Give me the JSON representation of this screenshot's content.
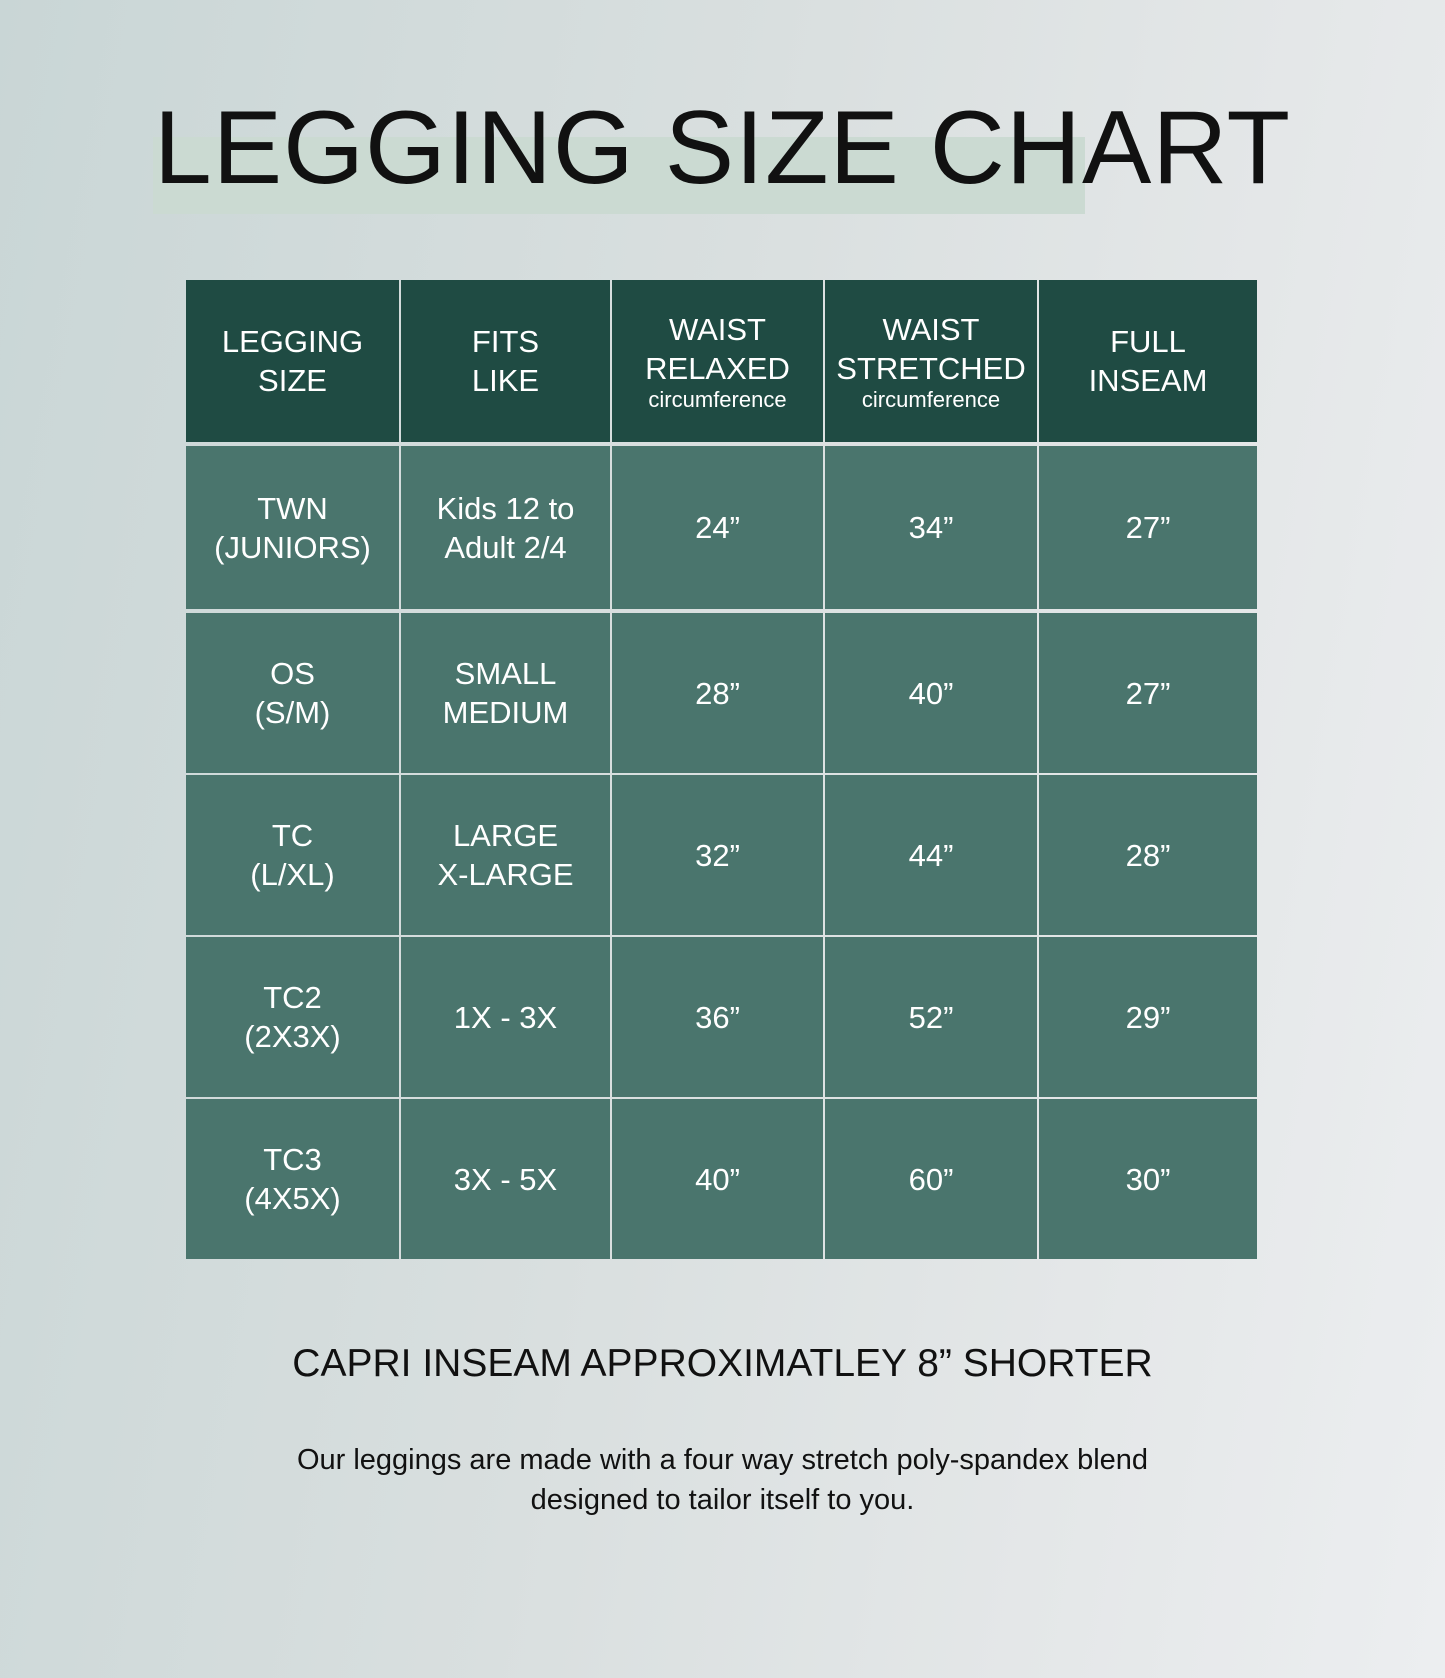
{
  "title": "LEGGING SIZE CHART",
  "headers": [
    {
      "lines": [
        "LEGGING",
        "SIZE"
      ],
      "sub": ""
    },
    {
      "lines": [
        "FITS",
        "LIKE"
      ],
      "sub": ""
    },
    {
      "lines": [
        "WAIST",
        "RELAXED"
      ],
      "sub": "circumference"
    },
    {
      "lines": [
        "WAIST",
        "STRETCHED"
      ],
      "sub": "circumference"
    },
    {
      "lines": [
        "FULL",
        "INSEAM"
      ],
      "sub": ""
    }
  ],
  "rows": [
    [
      [
        "TWN",
        "(JUNIORS)"
      ],
      [
        "Kids 12 to",
        "Adult 2/4"
      ],
      [
        "24”"
      ],
      [
        "34”"
      ],
      [
        "27”"
      ]
    ],
    [
      [
        "OS",
        "(S/M)"
      ],
      [
        "SMALL",
        "MEDIUM"
      ],
      [
        "28”"
      ],
      [
        "40”"
      ],
      [
        "27”"
      ]
    ],
    [
      [
        "TC",
        "(L/XL)"
      ],
      [
        "LARGE",
        "X-LARGE"
      ],
      [
        "32”"
      ],
      [
        "44”"
      ],
      [
        "28”"
      ]
    ],
    [
      [
        "TC2",
        "(2X3X)"
      ],
      [
        "1X - 3X"
      ],
      [
        "36”"
      ],
      [
        "52”"
      ],
      [
        "29”"
      ]
    ],
    [
      [
        "TC3",
        "(4X5X)"
      ],
      [
        "3X - 5X"
      ],
      [
        "40”"
      ],
      [
        "60”"
      ],
      [
        "30”"
      ]
    ]
  ],
  "capri_note": "CAPRI INSEAM APPROXIMATLEY 8” SHORTER",
  "description": [
    "Our leggings are made with a four way stretch poly-spandex blend",
    "designed to tailor itself to you."
  ],
  "colors": {
    "header": "#1f4b43",
    "body": "#4a756d",
    "highlight": "#cbdad2"
  }
}
